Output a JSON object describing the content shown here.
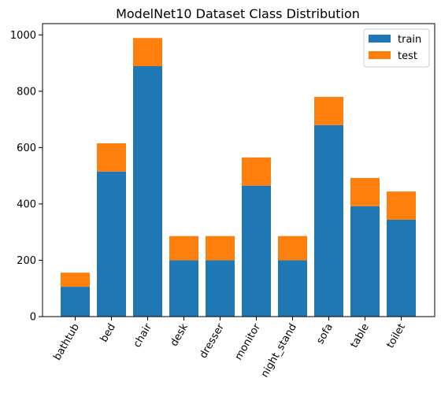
{
  "chart_data": {
    "type": "bar",
    "stacked": true,
    "title": "ModelNet10 Dataset Class Distribution",
    "xlabel": "",
    "ylabel": "",
    "categories": [
      "bathtub",
      "bed",
      "chair",
      "desk",
      "dresser",
      "monitor",
      "night_stand",
      "sofa",
      "table",
      "toilet"
    ],
    "series": [
      {
        "name": "train",
        "color": "#1f77b4",
        "values": [
          106,
          515,
          889,
          200,
          200,
          465,
          200,
          680,
          392,
          344
        ]
      },
      {
        "name": "test",
        "color": "#ff7f0e",
        "values": [
          50,
          100,
          100,
          86,
          86,
          100,
          86,
          100,
          100,
          100
        ]
      }
    ],
    "ylim": [
      0,
      1040
    ],
    "yticks": [
      0,
      200,
      400,
      600,
      800,
      1000
    ],
    "legend_position": "top-right",
    "grid": false
  }
}
